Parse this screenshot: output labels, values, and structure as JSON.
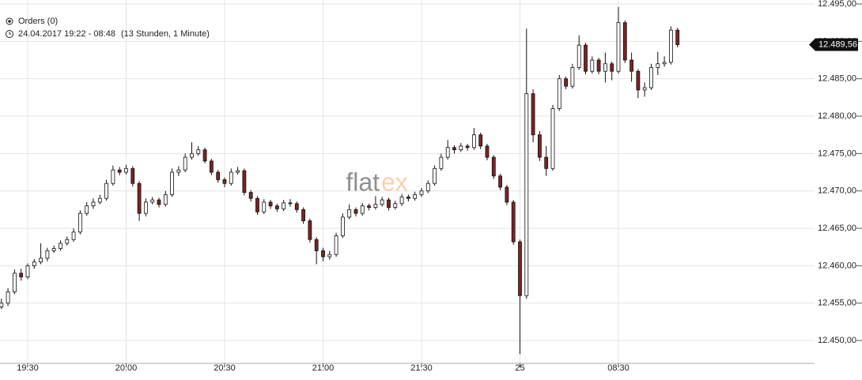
{
  "chart_data": {
    "type": "candlestick",
    "info": {
      "orders": "Orders (0)",
      "range": "24.04.2017 19:22 - 08:48",
      "duration": "(13 Stunden, 1 Minute)"
    },
    "watermark": [
      "flat",
      "ex"
    ],
    "up_color": "#ffffff",
    "down_color": "#7a2424",
    "xlim": [
      -8.43,
      239.76
    ],
    "ylim": [
      12446.94,
      12495.53
    ],
    "grid": true,
    "xticks": [
      {
        "value": 0,
        "label": "19:30"
      },
      {
        "value": 30,
        "label": "20:00"
      },
      {
        "value": 60,
        "label": "20:30"
      },
      {
        "value": 90,
        "label": "21:00"
      },
      {
        "value": 120,
        "label": "21:30"
      },
      {
        "value": 150,
        "label": "25"
      },
      {
        "value": 180,
        "label": "08:30"
      }
    ],
    "yticks": [
      {
        "value": 12450,
        "label": "12.450,00"
      },
      {
        "value": 12455,
        "label": "12.455,00"
      },
      {
        "value": 12460,
        "label": "12.460,00"
      },
      {
        "value": 12465,
        "label": "12.465,00"
      },
      {
        "value": 12470,
        "label": "12.470,00"
      },
      {
        "value": 12475,
        "label": "12.475,00"
      },
      {
        "value": 12480,
        "label": "12.480,00"
      },
      {
        "value": 12485,
        "label": "12.485,00"
      },
      {
        "value": 12490,
        "label": "12.490,00"
      },
      {
        "value": 12495,
        "label": "12.495,00"
      }
    ],
    "last_price": {
      "value": 12489.56,
      "label": "12.489,56"
    },
    "x": [
      -8,
      -6,
      -4,
      -2,
      0,
      2,
      4,
      6,
      8,
      10,
      12,
      14,
      16,
      18,
      20,
      22,
      24,
      26,
      28,
      30,
      32,
      34,
      36,
      38,
      40,
      42,
      44,
      46,
      48,
      50,
      52,
      54,
      56,
      58,
      60,
      62,
      64,
      66,
      68,
      70,
      72,
      74,
      76,
      78,
      80,
      82,
      84,
      86,
      88,
      90,
      92,
      94,
      96,
      98,
      100,
      102,
      104,
      106,
      108,
      110,
      112,
      114,
      116,
      118,
      120,
      122,
      124,
      126,
      128,
      130,
      132,
      134,
      136,
      138,
      140,
      142,
      144,
      146,
      148,
      150,
      152,
      154,
      156,
      158,
      160,
      162,
      164,
      166,
      168,
      170,
      172,
      174,
      176,
      178,
      180,
      182,
      184,
      186,
      188,
      190,
      192,
      194,
      196,
      198
    ],
    "ohlc": [
      [
        12454.5,
        12455.6,
        12454.2,
        12455
      ],
      [
        12455,
        12457,
        12454.6,
        12456.5
      ],
      [
        12456.5,
        12459.5,
        12456.2,
        12459
      ],
      [
        12459,
        12459.6,
        12458,
        12458.5
      ],
      [
        12458.5,
        12460.3,
        12458.2,
        12460
      ],
      [
        12460,
        12460.9,
        12459.6,
        12460.5
      ],
      [
        12460.5,
        12463,
        12460.2,
        12461
      ],
      [
        12461,
        12462.4,
        12460.6,
        12462
      ],
      [
        12462,
        12462.7,
        12461.7,
        12462.3
      ],
      [
        12462.3,
        12463.4,
        12462,
        12463
      ],
      [
        12463,
        12463.9,
        12462.7,
        12463.5
      ],
      [
        12463.5,
        12465,
        12463.2,
        12464.5
      ],
      [
        12464.5,
        12467.4,
        12464.2,
        12467
      ],
      [
        12467,
        12468.5,
        12466.7,
        12468
      ],
      [
        12468,
        12469,
        12467.6,
        12468.5
      ],
      [
        12468.5,
        12469.5,
        12468.2,
        12469
      ],
      [
        12469,
        12471.5,
        12468.7,
        12471
      ],
      [
        12471,
        12473.4,
        12470.7,
        12472.8
      ],
      [
        12472.8,
        12473.2,
        12472.1,
        12472.5
      ],
      [
        12472.5,
        12473.5,
        12472.2,
        12473
      ],
      [
        12473,
        12473.3,
        12470.6,
        12471
      ],
      [
        12471,
        12471.3,
        12466,
        12467
      ],
      [
        12467,
        12469,
        12466.6,
        12468.5
      ],
      [
        12468.5,
        12469.2,
        12468.2,
        12468.8
      ],
      [
        12468.8,
        12469.1,
        12467.8,
        12468.2
      ],
      [
        12468.2,
        12470,
        12467.9,
        12469.5
      ],
      [
        12469.5,
        12473,
        12469.2,
        12472.5
      ],
      [
        12472.5,
        12473.3,
        12472,
        12472.8
      ],
      [
        12472.8,
        12475,
        12472.5,
        12474.5
      ],
      [
        12474.5,
        12476.5,
        12474.2,
        12475
      ],
      [
        12475,
        12476,
        12474.7,
        12475.5
      ],
      [
        12475.5,
        12475.8,
        12473.7,
        12474
      ],
      [
        12474,
        12474.3,
        12472.1,
        12472.5
      ],
      [
        12472.5,
        12472.8,
        12471.1,
        12471.5
      ],
      [
        12471.5,
        12471.8,
        12470.5,
        12471
      ],
      [
        12471,
        12473,
        12470.7,
        12472.5
      ],
      [
        12472.5,
        12473.2,
        12472.2,
        12472.7
      ],
      [
        12472.7,
        12473,
        12469.4,
        12469.8
      ],
      [
        12469.8,
        12470.1,
        12468.6,
        12469
      ],
      [
        12469,
        12469.3,
        12466.8,
        12467.2
      ],
      [
        12467.2,
        12468.9,
        12466.9,
        12468.5
      ],
      [
        12468.5,
        12468.8,
        12467.6,
        12468
      ],
      [
        12468,
        12468.3,
        12467.2,
        12467.6
      ],
      [
        12467.6,
        12468.8,
        12467.3,
        12468.4
      ],
      [
        12468.4,
        12468.9,
        12467.9,
        12468.3
      ],
      [
        12468.3,
        12468.6,
        12467.1,
        12467.5
      ],
      [
        12467.5,
        12467.8,
        12465.6,
        12466
      ],
      [
        12466,
        12466.3,
        12463.1,
        12463.5
      ],
      [
        12463.5,
        12463.8,
        12460.2,
        12462
      ],
      [
        12462,
        12462.4,
        12460.6,
        12461.2
      ],
      [
        12461.2,
        12462,
        12460.8,
        12461.5
      ],
      [
        12461.5,
        12464.4,
        12461.2,
        12464
      ],
      [
        12464,
        12467,
        12463.7,
        12466.5
      ],
      [
        12466.5,
        12468.2,
        12466.2,
        12467.5
      ],
      [
        12467.5,
        12467.8,
        12466.6,
        12467
      ],
      [
        12467,
        12468.4,
        12466.7,
        12468
      ],
      [
        12468,
        12468.3,
        12467.4,
        12467.8
      ],
      [
        12467.8,
        12469.3,
        12467.5,
        12468.2
      ],
      [
        12468.2,
        12469.2,
        12467.9,
        12468.8
      ],
      [
        12468.8,
        12469.1,
        12467.4,
        12467.8
      ],
      [
        12467.8,
        12468.7,
        12467.5,
        12468.3
      ],
      [
        12468.3,
        12469.6,
        12468,
        12469.2
      ],
      [
        12469.2,
        12469.5,
        12468.6,
        12469
      ],
      [
        12469,
        12469.9,
        12468.7,
        12469.5
      ],
      [
        12469.5,
        12470.4,
        12469.2,
        12470
      ],
      [
        12470,
        12471.4,
        12469.7,
        12471
      ],
      [
        12471,
        12473.4,
        12470.7,
        12473
      ],
      [
        12473,
        12475,
        12472.7,
        12474.5
      ],
      [
        12474.5,
        12476.8,
        12474.2,
        12475.8
      ],
      [
        12475.8,
        12476.1,
        12475,
        12475.5
      ],
      [
        12475.5,
        12476.4,
        12475.2,
        12476
      ],
      [
        12476,
        12476.3,
        12475.4,
        12475.8
      ],
      [
        12475.8,
        12478.4,
        12475.5,
        12477.5
      ],
      [
        12477.5,
        12477.8,
        12475.6,
        12476
      ],
      [
        12476,
        12476.3,
        12474.1,
        12474.5
      ],
      [
        12474.5,
        12474.8,
        12471.6,
        12472
      ],
      [
        12472,
        12472.3,
        12470.1,
        12470.5
      ],
      [
        12470.5,
        12470.8,
        12468.1,
        12468.5
      ],
      [
        12468.5,
        12468.8,
        12462.8,
        12463.2
      ],
      [
        12463.2,
        12463.5,
        12448.2,
        12456
      ],
      [
        12456,
        12491.7,
        12455.6,
        12483
      ],
      [
        12483,
        12483.6,
        12476.5,
        12477.5
      ],
      [
        12477.5,
        12478,
        12474,
        12474.5
      ],
      [
        12474.5,
        12476,
        12472,
        12473
      ],
      [
        12473,
        12481.5,
        12472.7,
        12481
      ],
      [
        12481,
        12485.5,
        12480.7,
        12485
      ],
      [
        12485,
        12485.3,
        12483.6,
        12484
      ],
      [
        12484,
        12487,
        12483.7,
        12486.5
      ],
      [
        12486.5,
        12490.8,
        12486.2,
        12489.5
      ],
      [
        12489.5,
        12489.8,
        12485.6,
        12486
      ],
      [
        12486,
        12488,
        12485.7,
        12487.5
      ],
      [
        12487.5,
        12487.8,
        12485.6,
        12486
      ],
      [
        12486,
        12488.5,
        12484.5,
        12487
      ],
      [
        12487,
        12487.3,
        12484.8,
        12486
      ],
      [
        12486,
        12494.6,
        12485.7,
        12492.5
      ],
      [
        12492.5,
        12492.8,
        12487.1,
        12487.5
      ],
      [
        12487.5,
        12488.5,
        12484.6,
        12486
      ],
      [
        12486,
        12486.3,
        12482.4,
        12483.5
      ],
      [
        12483.5,
        12484.5,
        12482.6,
        12483.8
      ],
      [
        12483.8,
        12487,
        12483.5,
        12486.5
      ],
      [
        12486.5,
        12488.6,
        12485.5,
        12487
      ],
      [
        12487,
        12488,
        12486.6,
        12487.2
      ],
      [
        12487.2,
        12492,
        12486.9,
        12491.5
      ],
      [
        12491.5,
        12491.8,
        12489.2,
        12489.56
      ]
    ]
  }
}
